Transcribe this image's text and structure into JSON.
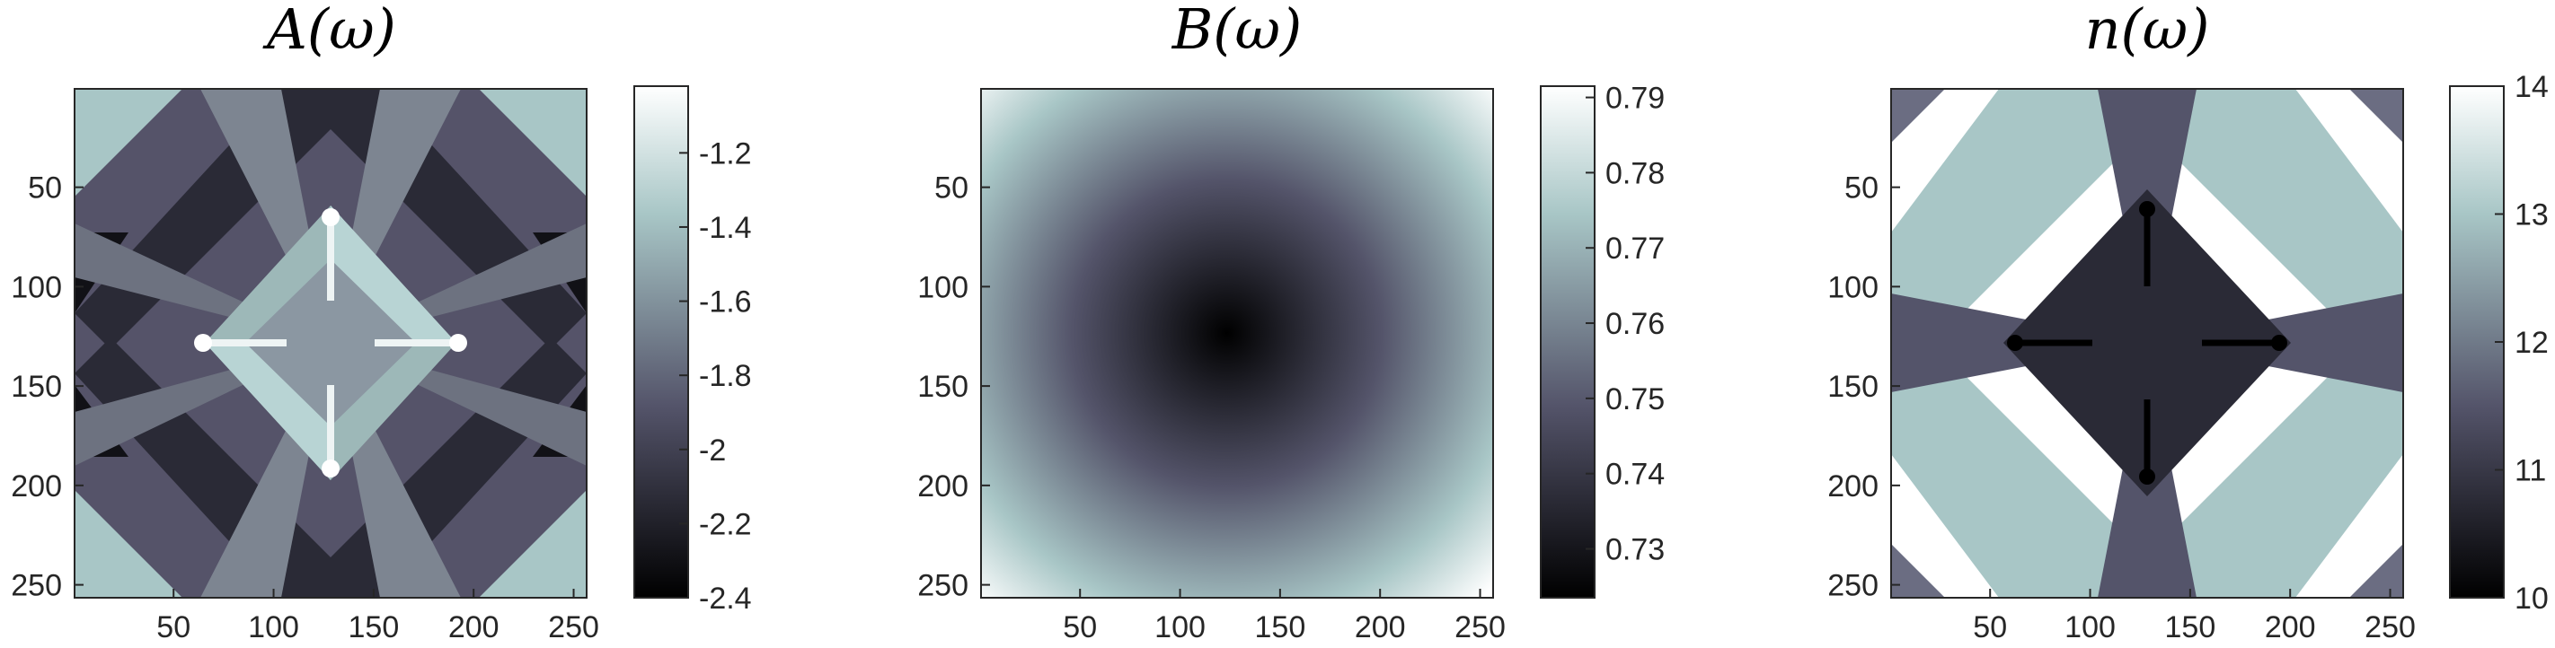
{
  "colormap": {
    "name": "bone",
    "stops": [
      "#000000",
      "#54546a",
      "#a8c6c6",
      "#ffffff"
    ]
  },
  "chart_data": [
    {
      "type": "heatmap",
      "title": "A(ω)",
      "xlabel": "",
      "ylabel": "",
      "x_ticks": [
        "50",
        "100",
        "150",
        "200",
        "250"
      ],
      "y_ticks": [
        "50",
        "100",
        "150",
        "200",
        "250"
      ],
      "xlim": [
        1,
        256
      ],
      "ylim": [
        1,
        256
      ],
      "y_direction": "down",
      "colorbar_range": [
        -2.4,
        -1.02
      ],
      "colorbar_ticks": [
        "-1.2",
        "-1.4",
        "-1.6",
        "-1.8",
        "-2",
        "-2.2",
        "-2.4"
      ]
    },
    {
      "type": "heatmap",
      "title": "B(ω)",
      "xlabel": "",
      "ylabel": "",
      "x_ticks": [
        "50",
        "100",
        "150",
        "200",
        "250"
      ],
      "y_ticks": [
        "50",
        "100",
        "150",
        "200",
        "250"
      ],
      "xlim": [
        1,
        256
      ],
      "ylim": [
        1,
        256
      ],
      "y_direction": "down",
      "colorbar_range": [
        0.7235,
        0.7915
      ],
      "colorbar_ticks": [
        "0.79",
        "0.78",
        "0.77",
        "0.76",
        "0.75",
        "0.74",
        "0.73"
      ]
    },
    {
      "type": "heatmap",
      "title": "n(ω)",
      "xlabel": "",
      "ylabel": "",
      "x_ticks": [
        "50",
        "100",
        "150",
        "200",
        "250"
      ],
      "y_ticks": [
        "50",
        "100",
        "150",
        "200",
        "250"
      ],
      "xlim": [
        1,
        256
      ],
      "ylim": [
        1,
        256
      ],
      "y_direction": "down",
      "colorbar_range": [
        10,
        14
      ],
      "colorbar_ticks": [
        "14",
        "13",
        "12",
        "11",
        "10"
      ]
    }
  ]
}
